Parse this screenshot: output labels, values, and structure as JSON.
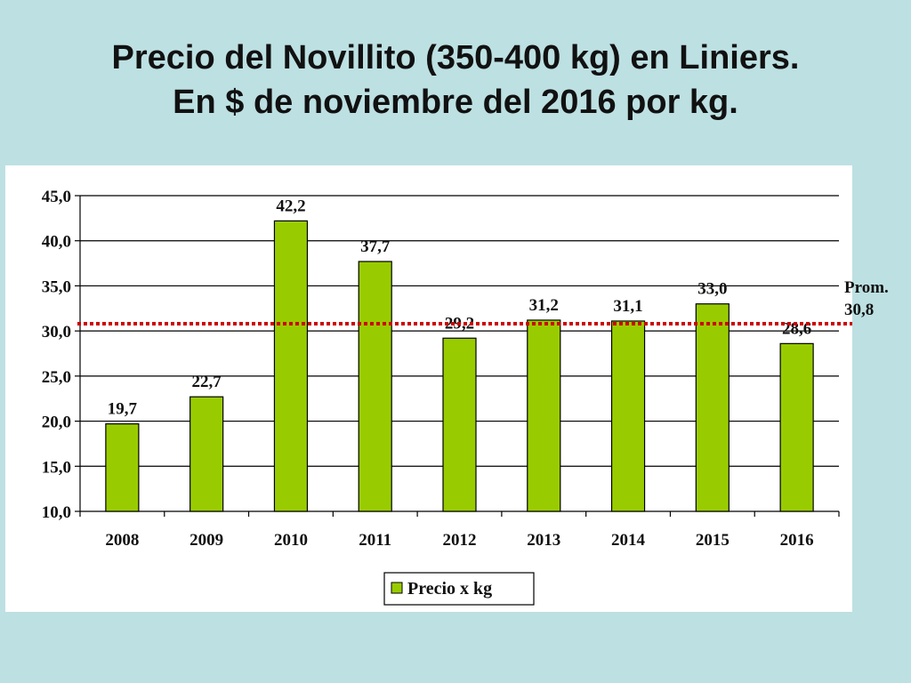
{
  "title": {
    "line1": "Precio del Novillito (350-400 kg) en Liniers.",
    "line2": "En $ de noviembre del 2016 por kg."
  },
  "chart_data": {
    "type": "bar",
    "categories": [
      "2008",
      "2009",
      "2010",
      "2011",
      "2012",
      "2013",
      "2014",
      "2015",
      "2016"
    ],
    "series": [
      {
        "name": "Precio  x kg",
        "values": [
          19.7,
          22.7,
          42.2,
          37.7,
          29.2,
          31.2,
          31.1,
          33.0,
          28.6
        ],
        "value_labels": [
          "19,7",
          "22,7",
          "42,2",
          "37,7",
          "29,2",
          "31,2",
          "31,1",
          "33,0",
          "28,6"
        ],
        "color": "#99cc00"
      }
    ],
    "ylim": [
      10.0,
      45.0
    ],
    "yticks": [
      10.0,
      15.0,
      20.0,
      25.0,
      30.0,
      35.0,
      40.0,
      45.0
    ],
    "ytick_labels": [
      "10,0",
      "15,0",
      "20,0",
      "25,0",
      "30,0",
      "35,0",
      "40,0",
      "45,0"
    ],
    "grid": true,
    "legend_position": "bottom",
    "reference_line": {
      "value": 30.8,
      "label_line1": "Prom.",
      "label_line2": "30,8",
      "color": "#cc0000",
      "style": "dotted"
    }
  }
}
